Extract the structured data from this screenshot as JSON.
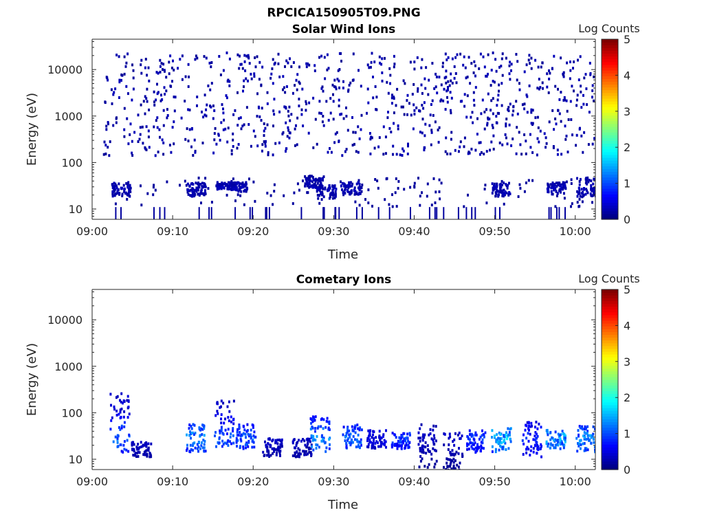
{
  "figure_title": "RPCICA150905T09.PNG",
  "chart_data": [
    {
      "type": "heatmap",
      "title": "Solar Wind Ions",
      "xlabel": "Time",
      "ylabel": "Energy (eV)",
      "colorbar_label": "Log Counts",
      "x_range": [
        "09:00",
        "10:02"
      ],
      "xticks": [
        "09:00",
        "09:10",
        "09:20",
        "09:30",
        "09:40",
        "09:50",
        "10:00"
      ],
      "y_scale": "log",
      "y_range": [
        6,
        45000
      ],
      "yticks": [
        "10",
        "100",
        "1000",
        "10000"
      ],
      "colorbar_ticks": [
        "0",
        "1",
        "2",
        "3",
        "4",
        "5"
      ],
      "colorbar_range": [
        0,
        5
      ],
      "colormap": "jet",
      "description_level": "sparse low counts (0-1) across 100-20000 eV; denser clusters at 20-40 eV",
      "clusters": [
        {
          "t": 3.5,
          "e_lo": 20,
          "e_hi": 40,
          "level": 0.3
        },
        {
          "t": 12.8,
          "e_lo": 20,
          "e_hi": 40,
          "level": 0.3
        },
        {
          "t": 16.5,
          "e_lo": 28,
          "e_hi": 40,
          "level": 0.3
        },
        {
          "t": 18.0,
          "e_lo": 25,
          "e_hi": 40,
          "level": 0.3
        },
        {
          "t": 27.5,
          "e_lo": 30,
          "e_hi": 55,
          "level": 0.3
        },
        {
          "t": 29.0,
          "e_lo": 18,
          "e_hi": 35,
          "level": 0.3
        },
        {
          "t": 32.0,
          "e_lo": 22,
          "e_hi": 40,
          "level": 0.3
        },
        {
          "t": 50.7,
          "e_lo": 20,
          "e_hi": 40,
          "level": 0.3
        },
        {
          "t": 57.5,
          "e_lo": 22,
          "e_hi": 40,
          "level": 0.3
        },
        {
          "t": 61.3,
          "e_lo": 20,
          "e_hi": 50,
          "level": 0.3
        }
      ]
    },
    {
      "type": "heatmap",
      "title": "Cometary Ions",
      "xlabel": "Time",
      "ylabel": "Energy (eV)",
      "colorbar_label": "Log Counts",
      "x_range": [
        "09:00",
        "10:02"
      ],
      "xticks": [
        "09:00",
        "09:10",
        "09:20",
        "09:30",
        "09:40",
        "09:50",
        "10:00"
      ],
      "y_scale": "log",
      "y_range": [
        6,
        45000
      ],
      "yticks": [
        "10",
        "100",
        "1000",
        "10000"
      ],
      "colorbar_ticks": [
        "0",
        "1",
        "2",
        "3",
        "4",
        "5"
      ],
      "colorbar_range": [
        0,
        5
      ],
      "colormap": "jet",
      "clusters": [
        {
          "t": 3.3,
          "e_lo": 15,
          "e_hi": 320,
          "level": 1.3
        },
        {
          "t": 6.0,
          "e_lo": 12,
          "e_hi": 25,
          "level": 0.4
        },
        {
          "t": 12.8,
          "e_lo": 15,
          "e_hi": 60,
          "level": 1.5
        },
        {
          "t": 16.3,
          "e_lo": 20,
          "e_hi": 200,
          "level": 1.2
        },
        {
          "t": 19.0,
          "e_lo": 18,
          "e_hi": 60,
          "level": 1.2
        },
        {
          "t": 22.3,
          "e_lo": 12,
          "e_hi": 30,
          "level": 0.4
        },
        {
          "t": 26.0,
          "e_lo": 12,
          "e_hi": 30,
          "level": 0.4
        },
        {
          "t": 28.2,
          "e_lo": 15,
          "e_hi": 90,
          "level": 1.5
        },
        {
          "t": 32.2,
          "e_lo": 18,
          "e_hi": 60,
          "level": 1.3
        },
        {
          "t": 35.2,
          "e_lo": 18,
          "e_hi": 45,
          "level": 0.6
        },
        {
          "t": 38.3,
          "e_lo": 18,
          "e_hi": 40,
          "level": 1.0
        },
        {
          "t": 41.5,
          "e_lo": 7,
          "e_hi": 60,
          "level": 0.4
        },
        {
          "t": 44.7,
          "e_lo": 6,
          "e_hi": 40,
          "level": 0.4
        },
        {
          "t": 47.5,
          "e_lo": 15,
          "e_hi": 45,
          "level": 1.0
        },
        {
          "t": 50.7,
          "e_lo": 15,
          "e_hi": 50,
          "level": 1.7
        },
        {
          "t": 54.5,
          "e_lo": 12,
          "e_hi": 70,
          "level": 0.9
        },
        {
          "t": 57.5,
          "e_lo": 18,
          "e_hi": 45,
          "level": 1.6
        },
        {
          "t": 61.2,
          "e_lo": 15,
          "e_hi": 55,
          "level": 1.5
        }
      ]
    }
  ]
}
